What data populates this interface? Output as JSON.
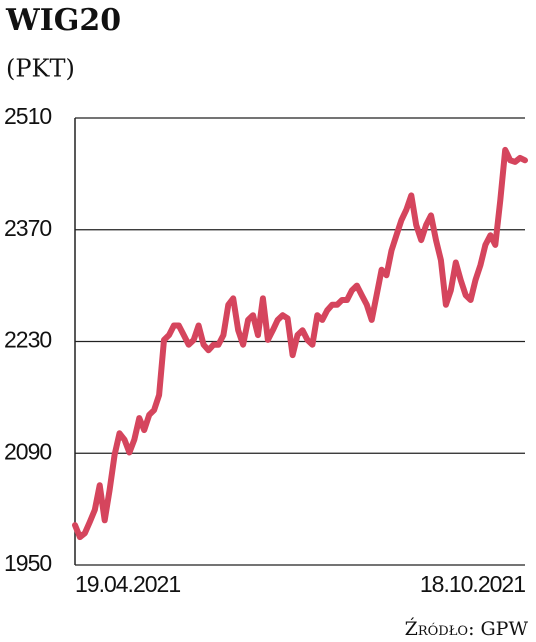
{
  "chart_data": {
    "type": "line",
    "title": "WIG20",
    "subtitle": "(PKT)",
    "source": "Źródło: GPW",
    "categories": [
      "19.04.2021",
      null,
      null,
      null,
      null,
      null,
      null,
      null,
      null,
      null,
      null,
      null,
      null,
      null,
      null,
      null,
      null,
      null,
      null,
      null,
      null,
      null,
      null,
      null,
      null,
      null,
      null,
      null,
      null,
      null,
      null,
      null,
      null,
      null,
      null,
      null,
      null,
      null,
      null,
      null,
      null,
      null,
      null,
      null,
      null,
      null,
      null,
      null,
      null,
      null,
      null,
      null,
      null,
      null,
      null,
      null,
      null,
      null,
      null,
      null,
      null,
      null,
      null,
      null,
      null,
      null,
      null,
      null,
      null,
      null,
      null,
      null,
      null,
      null,
      null,
      null,
      null,
      null,
      null,
      null,
      null,
      null,
      null,
      null,
      null,
      null,
      null,
      null,
      null,
      null,
      null,
      "18.10.2021"
    ],
    "values": [
      2000,
      1985,
      1990,
      2004,
      2019,
      2050,
      2006,
      2044,
      2088,
      2115,
      2107,
      2091,
      2107,
      2134,
      2119,
      2138,
      2144,
      2163,
      2232,
      2238,
      2250,
      2250,
      2238,
      2226,
      2232,
      2250,
      2226,
      2219,
      2226,
      2226,
      2238,
      2276,
      2284,
      2244,
      2226,
      2257,
      2263,
      2238,
      2284,
      2232,
      2244,
      2257,
      2263,
      2259,
      2213,
      2238,
      2244,
      2232,
      2226,
      2263,
      2257,
      2269,
      2276,
      2276,
      2282,
      2282,
      2294,
      2300,
      2288,
      2276,
      2257,
      2288,
      2320,
      2313,
      2344,
      2363,
      2382,
      2395,
      2413,
      2376,
      2357,
      2376,
      2388,
      2357,
      2332,
      2276,
      2294,
      2329,
      2307,
      2288,
      2282,
      2307,
      2326,
      2351,
      2363,
      2351,
      2407,
      2470,
      2457,
      2455,
      2460,
      2457
    ],
    "color": "#d5455d",
    "ylim": [
      1950,
      2510
    ],
    "yticks": [
      1950,
      2090,
      2230,
      2370,
      2510
    ],
    "grid": true
  }
}
